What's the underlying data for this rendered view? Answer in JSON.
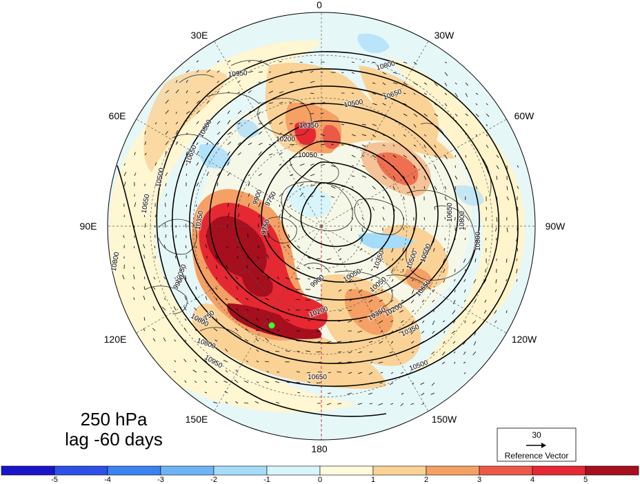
{
  "title": {
    "line1": "250 hPa",
    "line2": "lag -60 days"
  },
  "longitude_labels": [
    {
      "text": "0"
    },
    {
      "text": "30W"
    },
    {
      "text": "60W"
    },
    {
      "text": "90W"
    },
    {
      "text": "120W"
    },
    {
      "text": "150W"
    },
    {
      "text": "180"
    },
    {
      "text": "150E"
    },
    {
      "text": "120E"
    },
    {
      "text": "90E"
    },
    {
      "text": "60E"
    },
    {
      "text": "30E"
    }
  ],
  "contour_labels": [
    "10800",
    "10650",
    "10500",
    "10350",
    "10200",
    "10050",
    "9900",
    "9750",
    "10950",
    "10800",
    "10650",
    "10500",
    "10350",
    "10050",
    "9900",
    "9750",
    "10800",
    "10950",
    "10800",
    "10650",
    "10500",
    "10350",
    "10200",
    "10050",
    "10350",
    "10500",
    "10650",
    "10800",
    "10800",
    "10650",
    "10500",
    "10350",
    "10200",
    "10050",
    "9900",
    "9750",
    "10800",
    "10650"
  ],
  "reference_vector": {
    "magnitude": "30",
    "label": "Reference Vector"
  },
  "colorbar": {
    "tick_labels": [
      "-5",
      "-4",
      "-3",
      "-2",
      "-1",
      "0",
      "1",
      "2",
      "3",
      "4",
      "5"
    ],
    "colors": [
      "#1a14c8",
      "#2d50e6",
      "#3c82f0",
      "#6eb4f5",
      "#a5dcfa",
      "#d7f5fa",
      "#fffadc",
      "#fad296",
      "#f5a064",
      "#eb5a46",
      "#e62832",
      "#a50f1e"
    ]
  },
  "marker_color": "#33ff33"
}
